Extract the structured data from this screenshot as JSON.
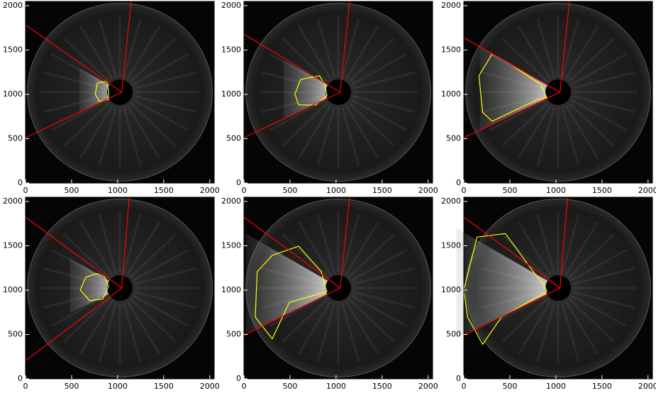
{
  "chart_data": [
    {
      "type": "image",
      "xlim": [
        0,
        2048
      ],
      "ylim": [
        0,
        2048
      ],
      "xticks": [
        0,
        500,
        1000,
        1500,
        2000
      ],
      "yticks": [
        0,
        500,
        1000,
        1500,
        2000
      ]
    },
    {
      "type": "image",
      "xlim": [
        0,
        2048
      ],
      "ylim": [
        0,
        2048
      ],
      "xticks": [
        0,
        500,
        1000,
        1500,
        2000
      ],
      "yticks": [
        0,
        500,
        1000,
        1500,
        2000
      ]
    },
    {
      "type": "image",
      "xlim": [
        0,
        2048
      ],
      "ylim": [
        0,
        2048
      ],
      "xticks": [
        0,
        500,
        1000,
        1500,
        2000
      ],
      "yticks": [
        0,
        500,
        1000,
        1500,
        2000
      ]
    },
    {
      "type": "image",
      "xlim": [
        0,
        2048
      ],
      "ylim": [
        0,
        2048
      ],
      "xticks": [
        0,
        500,
        1000,
        1500,
        2000
      ],
      "yticks": [
        0,
        500,
        1000,
        1500,
        2000
      ]
    },
    {
      "type": "image",
      "xlim": [
        0,
        2048
      ],
      "ylim": [
        0,
        2048
      ],
      "xticks": [
        0,
        500,
        1000,
        1500,
        2000
      ],
      "yticks": [
        0,
        500,
        1000,
        1500,
        2000
      ]
    },
    {
      "type": "image",
      "xlim": [
        0,
        2048
      ],
      "ylim": [
        0,
        2048
      ],
      "xticks": [
        0,
        500,
        1000,
        1500,
        2000
      ],
      "yticks": [
        0,
        500,
        1000,
        1500,
        2000
      ]
    }
  ]
}
